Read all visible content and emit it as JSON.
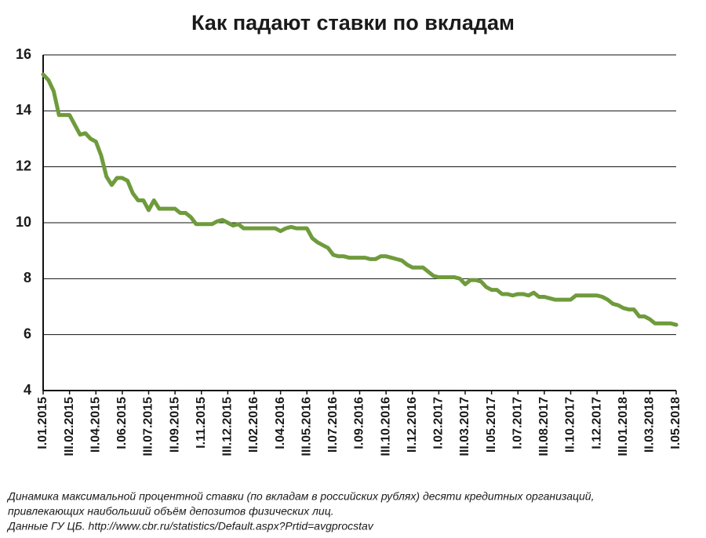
{
  "chart_data": {
    "type": "line",
    "title": "Как падают ставки по вкладам",
    "notes": [
      "Динамика максимальной процентной ставки (по вкладам в российских рублях) десяти кредитных организаций,",
      "привлекающих наибольший объём депозитов физических лиц.",
      "Данные ГУ ЦБ. http://www.cbr.ru/statistics/Default.aspx?Prtid=avgprocstav"
    ],
    "categories": [
      "I.01.2015",
      null,
      null,
      null,
      null,
      "III.02.2015",
      null,
      null,
      null,
      null,
      "II.04.2015",
      null,
      null,
      null,
      null,
      "I.06.2015",
      null,
      null,
      null,
      null,
      "III.07.2015",
      null,
      null,
      null,
      null,
      "II.09.2015",
      null,
      null,
      null,
      null,
      "I.11.2015",
      null,
      null,
      null,
      null,
      "III.12.2015",
      null,
      null,
      null,
      null,
      "II.02.2016",
      null,
      null,
      null,
      null,
      "I.04.2016",
      null,
      null,
      null,
      null,
      "III.05.2016",
      null,
      null,
      null,
      null,
      "II.07.2016",
      null,
      null,
      null,
      null,
      "I.09.2016",
      null,
      null,
      null,
      null,
      "III.10.2016",
      null,
      null,
      null,
      null,
      "II.12.2016",
      null,
      null,
      null,
      null,
      "I.02.2017",
      null,
      null,
      null,
      null,
      "III.03.2017",
      null,
      null,
      null,
      null,
      "II.05.2017",
      null,
      null,
      null,
      null,
      "I.07.2017",
      null,
      null,
      null,
      null,
      "III.08.2017",
      null,
      null,
      null,
      null,
      "II.10.2017",
      null,
      null,
      null,
      null,
      "I.12.2017",
      null,
      null,
      null,
      null,
      "III.01.2018",
      null,
      null,
      null,
      null,
      "II.03.2018",
      null,
      null,
      null,
      null,
      "I.05.2018"
    ],
    "values": [
      15.3,
      15.1,
      14.7,
      13.85,
      13.85,
      13.85,
      13.5,
      13.15,
      13.2,
      13.0,
      12.9,
      12.4,
      11.65,
      11.35,
      11.6,
      11.6,
      11.5,
      11.05,
      10.8,
      10.8,
      10.45,
      10.8,
      10.5,
      10.5,
      10.5,
      10.5,
      10.35,
      10.35,
      10.2,
      9.95,
      9.95,
      9.95,
      9.95,
      10.05,
      10.1,
      10.0,
      9.9,
      9.95,
      9.8,
      9.8,
      9.8,
      9.8,
      9.8,
      9.8,
      9.8,
      9.7,
      9.8,
      9.85,
      9.8,
      9.8,
      9.8,
      9.45,
      9.3,
      9.2,
      9.1,
      8.85,
      8.8,
      8.8,
      8.75,
      8.75,
      8.75,
      8.75,
      8.7,
      8.7,
      8.8,
      8.8,
      8.75,
      8.7,
      8.65,
      8.5,
      8.4,
      8.4,
      8.4,
      8.25,
      8.1,
      8.05,
      8.05,
      8.05,
      8.05,
      8.0,
      7.8,
      7.95,
      7.95,
      7.9,
      7.7,
      7.6,
      7.6,
      7.45,
      7.45,
      7.4,
      7.45,
      7.45,
      7.4,
      7.5,
      7.35,
      7.35,
      7.3,
      7.25,
      7.25,
      7.25,
      7.25,
      7.4,
      7.4,
      7.4,
      7.4,
      7.4,
      7.35,
      7.25,
      7.1,
      7.05,
      6.95,
      6.9,
      6.9,
      6.65,
      6.65,
      6.55,
      6.4,
      6.4,
      6.4,
      6.4,
      6.35
    ],
    "color": "#6f9b3c",
    "ylim": [
      4,
      16
    ],
    "yticks": [
      4,
      6,
      8,
      10,
      12,
      14,
      16
    ],
    "grid": true
  }
}
